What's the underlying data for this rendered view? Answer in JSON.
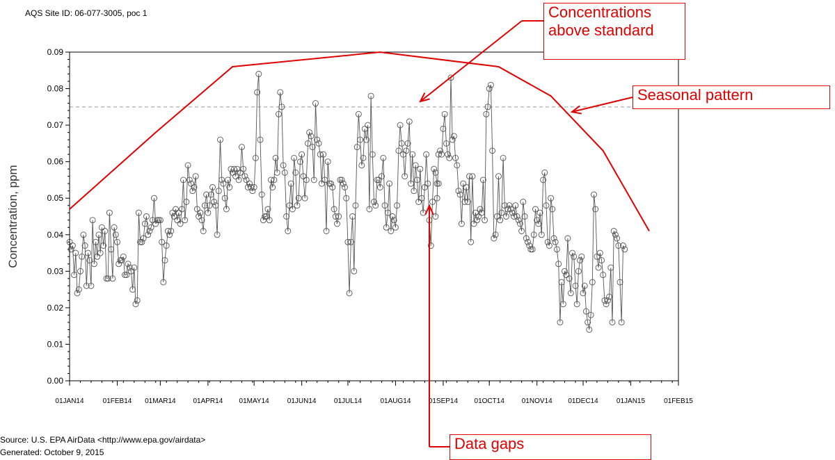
{
  "header": {
    "site_id": "AQS Site ID: 06-077-3005, poc 1"
  },
  "footer": {
    "source": "Source: U.S. EPA AirData <http://www.epa.gov/airdata>",
    "generated": "Generated: October 9, 2015"
  },
  "annotations": {
    "above_standard_line1": "Concentrations",
    "above_standard_line2": "above standard",
    "seasonal": "Seasonal pattern",
    "gaps": "Data gaps"
  },
  "colors": {
    "annotation": "#e00000",
    "series": "#555555",
    "standard": "#999999"
  },
  "chart_data": {
    "type": "line",
    "ylabel": "Concentration, ppm",
    "ylim": [
      0,
      0.09
    ],
    "yticks": [
      "0.00",
      "0.01",
      "0.02",
      "0.03",
      "0.04",
      "0.05",
      "0.06",
      "0.07",
      "0.08",
      "0.09"
    ],
    "xlim": [
      "2014-01-01",
      "2015-02-01"
    ],
    "xticks": [
      {
        "date": "2014-01-01",
        "label": "01JAN14"
      },
      {
        "date": "2014-02-01",
        "label": "01FEB14"
      },
      {
        "date": "2014-03-01",
        "label": "01MAR14"
      },
      {
        "date": "2014-04-01",
        "label": "01APR14"
      },
      {
        "date": "2014-05-01",
        "label": "01MAY14"
      },
      {
        "date": "2014-06-01",
        "label": "01JUN14"
      },
      {
        "date": "2014-07-01",
        "label": "01JUL14"
      },
      {
        "date": "2014-08-01",
        "label": "01AUG14"
      },
      {
        "date": "2014-09-01",
        "label": "01SEP14"
      },
      {
        "date": "2014-10-01",
        "label": "01OCT14"
      },
      {
        "date": "2014-11-01",
        "label": "01NOV14"
      },
      {
        "date": "2014-12-01",
        "label": "01DEC14"
      },
      {
        "date": "2015-01-01",
        "label": "01JAN15"
      },
      {
        "date": "2015-02-01",
        "label": "01FEB15"
      }
    ],
    "standard_line": 0.075,
    "seasonal_pattern": [
      {
        "date": "2014-01-01",
        "value": 0.047
      },
      {
        "date": "2014-02-26",
        "value": 0.068
      },
      {
        "date": "2014-04-17",
        "value": 0.086
      },
      {
        "date": "2014-07-22",
        "value": 0.09
      },
      {
        "date": "2014-10-07",
        "value": 0.086
      },
      {
        "date": "2014-11-10",
        "value": 0.078
      },
      {
        "date": "2014-12-14",
        "value": 0.063
      },
      {
        "date": "2015-01-13",
        "value": 0.041
      }
    ],
    "series": [
      {
        "segments": [
          {
            "start": "2014-01-01",
            "values": [
              0.038,
              0.036,
              0.037,
              0.029,
              0.035,
              0.024,
              0.025,
              0.03,
              0.034,
              0.04,
              0.037,
              0.026,
              0.035,
              0.033,
              0.026,
              0.044,
              0.032,
              0.038,
              0.034,
              0.04,
              0.035,
              0.042,
              0.037,
              0.041,
              0.028,
              0.028,
              0.046,
              0.036,
              0.028,
              0.042,
              0.04,
              0.038,
              0.032,
              0.033,
              0.033,
              0.034,
              0.029,
              0.029,
              0.032,
              0.031,
              0.03,
              0.025,
              0.031,
              0.021,
              0.022,
              0.046,
              0.038,
              0.038,
              0.039,
              0.043,
              0.045,
              0.04,
              0.041,
              0.042,
              0.044,
              0.05,
              0.043,
              0.044,
              0.044,
              0.044,
              0.038,
              0.027,
              0.033,
              0.037,
              0.041,
              0.04,
              0.041,
              0.046,
              0.045,
              0.047,
              0.044,
              0.046,
              0.043,
              0.047,
              0.055,
              0.044,
              0.049,
              0.059,
              0.055,
              0.054,
              0.052,
              0.053,
              0.056,
              0.047,
              0.045,
              0.046,
              0.044,
              0.041,
              0.048,
              0.051,
              0.046,
              0.048,
              0.051,
              0.053,
              0.049,
              0.048,
              0.04,
              0.052,
              0.066,
              0.055,
              0.054,
              0.05,
              0.047,
              0.055,
              0.053,
              0.058,
              0.057,
              0.058,
              0.056,
              0.058,
              0.055,
              0.057,
              0.064,
              0.058,
              0.056,
              0.055,
              0.053,
              0.054,
              0.053,
              0.052,
              0.053,
              0.061,
              0.079,
              0.084,
              0.066,
              0.051,
              0.044,
              0.045,
              0.045,
              0.047,
              0.044,
              0.055,
              0.053,
              0.055,
              0.061,
              0.057,
              0.073,
              0.079,
              0.075,
              0.059,
              0.057,
              0.045,
              0.041,
              0.048,
              0.054,
              0.047,
              0.061,
              0.057,
              0.048,
              0.05,
              0.06,
              0.062,
              0.056,
              0.05,
              0.055,
              0.065,
              0.068,
              0.067,
              0.064,
              0.055,
              0.076,
              0.066,
              0.065,
              0.062,
              0.054,
              0.062,
              0.055,
              0.041,
              0.06,
              0.054,
              0.054,
              0.053,
              0.047,
              0.045,
              0.043,
              0.045,
              0.055,
              0.055,
              0.054,
              0.053,
              0.05,
              0.038,
              0.024,
              0.038,
              0.045,
              0.03,
              0.048,
              0.064,
              0.073,
              0.066,
              0.059,
              0.061,
              0.069,
              0.066,
              0.07,
              0.047,
              0.078,
              0.062,
              0.049,
              0.048,
              0.055,
              0.055,
              0.053,
              0.056,
              0.061,
              0.048,
              0.042,
              0.046,
              0.054,
              0.041,
              0.045,
              0.044,
              0.042,
              0.048,
              0.063,
              0.07,
              0.065,
              0.062,
              0.056,
              0.063,
              0.065,
              0.071,
              0.054,
              0.062,
              0.052,
              0.059,
              0.055,
              0.049,
              0.058,
              0.05,
              0.046,
              0.053,
              0.062,
              0.054,
              0.044,
              0.037,
              0.049,
              0.058,
              0.057,
              0.054,
              0.054
            ]
          },
          {
            "start": "2014-08-27",
            "values": [
              0.045,
              0.05,
              0.062,
              0.063,
              0.062,
              0.069,
              0.073,
              0.065,
              0.062,
              0.061,
              0.083,
              0.066,
              0.067,
              0.061,
              0.059,
              0.052,
              0.051,
              0.043,
              0.054,
              0.049,
              0.053,
              0.049,
              0.056,
              0.038,
              0.056,
              0.043,
              0.046,
              0.044,
              0.045,
              0.047,
              0.046,
              0.055,
              0.044,
              0.073,
              0.075,
              0.08,
              0.081,
              0.063,
              0.039,
              0.04,
              0.045,
              0.056,
              0.044,
              0.046,
              0.061,
              0.048,
              0.045,
              0.047,
              0.048,
              0.047,
              0.046,
              0.045,
              0.048,
              0.045,
              0.044,
              0.043,
              0.041,
              0.049,
              0.045,
              0.039,
              0.038,
              0.037,
              0.036,
              0.036,
              0.04,
              0.047,
              0.044,
              0.043,
              0.046,
              0.04,
              0.055,
              0.057,
              0.048,
              0.038,
              0.037,
              0.05,
              0.047,
              0.039,
              0.038,
              0.036,
              0.032,
              0.016,
              0.027,
              0.021,
              0.03,
              0.029,
              0.039,
              0.028,
              0.024,
              0.035,
              0.034,
              0.026,
              0.021,
              0.03,
              0.033,
              0.034,
              0.024,
              0.026,
              0.019,
              0.016,
              0.014,
              0.018,
              0.027,
              0.051,
              0.047,
              0.034,
              0.031,
              0.035,
              0.033,
              0.029,
              0.022,
              0.021,
              0.022,
              0.023,
              0.031,
              0.016,
              0.041,
              0.04,
              0.039,
              0.037,
              0.027,
              0.016,
              0.037,
              0.036
            ]
          }
        ]
      }
    ]
  }
}
